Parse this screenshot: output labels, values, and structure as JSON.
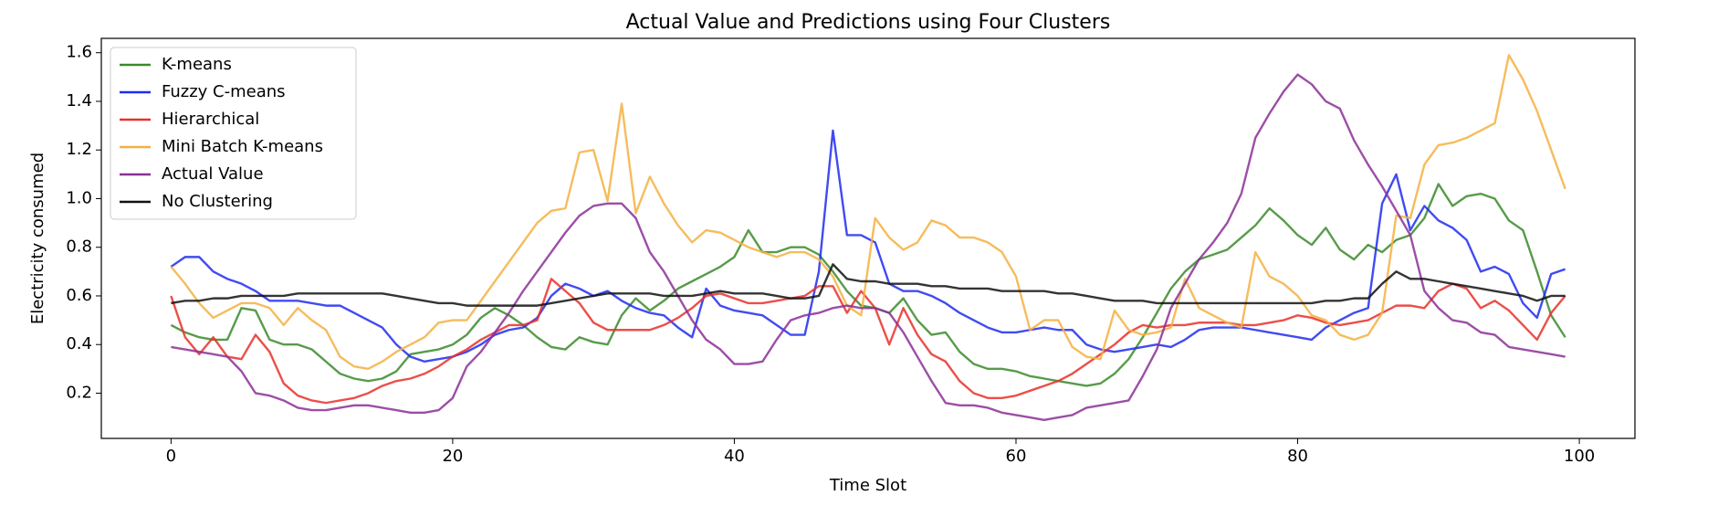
{
  "chart_data": {
    "type": "line",
    "title": "Actual Value and Predictions using Four Clusters",
    "xlabel": "Time Slot",
    "ylabel": "Electricity consumed",
    "x": [
      0,
      1,
      2,
      3,
      4,
      5,
      6,
      7,
      8,
      9,
      10,
      11,
      12,
      13,
      14,
      15,
      16,
      17,
      18,
      19,
      20,
      21,
      22,
      23,
      24,
      25,
      26,
      27,
      28,
      29,
      30,
      31,
      32,
      33,
      34,
      35,
      36,
      37,
      38,
      39,
      40,
      41,
      42,
      43,
      44,
      45,
      46,
      47,
      48,
      49,
      50,
      51,
      52,
      53,
      54,
      55,
      56,
      57,
      58,
      59,
      60,
      61,
      62,
      63,
      64,
      65,
      66,
      67,
      68,
      69,
      70,
      71,
      72,
      73,
      74,
      75,
      76,
      77,
      78,
      79,
      80,
      81,
      82,
      83,
      84,
      85,
      86,
      87,
      88,
      89,
      90,
      91,
      92,
      93,
      94,
      95,
      96,
      97,
      98,
      99
    ],
    "series": [
      {
        "name": "K-means",
        "color": "#3a8a2a",
        "values": [
          0.48,
          0.45,
          0.43,
          0.42,
          0.42,
          0.55,
          0.54,
          0.42,
          0.4,
          0.4,
          0.38,
          0.33,
          0.28,
          0.26,
          0.25,
          0.26,
          0.29,
          0.36,
          0.37,
          0.38,
          0.4,
          0.44,
          0.51,
          0.55,
          0.52,
          0.48,
          0.43,
          0.39,
          0.38,
          0.43,
          0.41,
          0.4,
          0.52,
          0.59,
          0.54,
          0.58,
          0.63,
          0.66,
          0.69,
          0.72,
          0.76,
          0.87,
          0.78,
          0.78,
          0.8,
          0.8,
          0.77,
          0.7,
          0.62,
          0.56,
          0.55,
          0.53,
          0.59,
          0.5,
          0.44,
          0.45,
          0.37,
          0.32,
          0.3,
          0.3,
          0.29,
          0.27,
          0.26,
          0.25,
          0.24,
          0.23,
          0.24,
          0.28,
          0.34,
          0.43,
          0.53,
          0.63,
          0.7,
          0.75,
          0.77,
          0.79,
          0.84,
          0.89,
          0.96,
          0.91,
          0.85,
          0.81,
          0.88,
          0.79,
          0.75,
          0.81,
          0.78,
          0.83,
          0.85,
          0.92,
          1.06,
          0.97,
          1.01,
          1.02,
          1.0,
          0.91,
          0.87,
          0.7,
          0.52,
          0.43
        ]
      },
      {
        "name": "Fuzzy C-means",
        "color": "#1f2cf0",
        "values": [
          0.72,
          0.76,
          0.76,
          0.7,
          0.67,
          0.65,
          0.62,
          0.58,
          0.58,
          0.58,
          0.57,
          0.56,
          0.56,
          0.53,
          0.5,
          0.47,
          0.4,
          0.35,
          0.33,
          0.34,
          0.35,
          0.37,
          0.4,
          0.44,
          0.46,
          0.47,
          0.51,
          0.6,
          0.65,
          0.63,
          0.6,
          0.62,
          0.58,
          0.55,
          0.53,
          0.52,
          0.47,
          0.43,
          0.63,
          0.56,
          0.54,
          0.53,
          0.52,
          0.48,
          0.44,
          0.44,
          0.7,
          1.28,
          0.85,
          0.85,
          0.82,
          0.65,
          0.62,
          0.62,
          0.6,
          0.57,
          0.53,
          0.5,
          0.47,
          0.45,
          0.45,
          0.46,
          0.47,
          0.46,
          0.46,
          0.4,
          0.38,
          0.37,
          0.38,
          0.39,
          0.4,
          0.39,
          0.42,
          0.46,
          0.47,
          0.47,
          0.47,
          0.46,
          0.45,
          0.44,
          0.43,
          0.42,
          0.47,
          0.5,
          0.53,
          0.55,
          0.98,
          1.1,
          0.87,
          0.97,
          0.91,
          0.88,
          0.83,
          0.7,
          0.72,
          0.69,
          0.57,
          0.51,
          0.69,
          0.71
        ]
      },
      {
        "name": "Hierarchical",
        "color": "#e8302a",
        "values": [
          0.6,
          0.43,
          0.36,
          0.43,
          0.35,
          0.34,
          0.44,
          0.37,
          0.24,
          0.19,
          0.17,
          0.16,
          0.17,
          0.18,
          0.2,
          0.23,
          0.25,
          0.26,
          0.28,
          0.31,
          0.35,
          0.38,
          0.42,
          0.45,
          0.48,
          0.48,
          0.5,
          0.67,
          0.62,
          0.57,
          0.49,
          0.46,
          0.46,
          0.46,
          0.46,
          0.48,
          0.51,
          0.55,
          0.6,
          0.61,
          0.59,
          0.57,
          0.57,
          0.58,
          0.59,
          0.6,
          0.64,
          0.64,
          0.53,
          0.62,
          0.55,
          0.4,
          0.55,
          0.44,
          0.36,
          0.33,
          0.25,
          0.2,
          0.18,
          0.18,
          0.19,
          0.21,
          0.23,
          0.25,
          0.28,
          0.32,
          0.36,
          0.4,
          0.45,
          0.48,
          0.47,
          0.48,
          0.48,
          0.49,
          0.49,
          0.49,
          0.48,
          0.48,
          0.49,
          0.5,
          0.52,
          0.51,
          0.49,
          0.48,
          0.49,
          0.5,
          0.53,
          0.56,
          0.56,
          0.55,
          0.62,
          0.65,
          0.63,
          0.55,
          0.58,
          0.54,
          0.48,
          0.42,
          0.53,
          0.6
        ]
      },
      {
        "name": "Mini Batch K-means",
        "color": "#f5b041",
        "values": [
          0.72,
          0.65,
          0.57,
          0.51,
          0.54,
          0.57,
          0.57,
          0.55,
          0.48,
          0.55,
          0.5,
          0.46,
          0.35,
          0.31,
          0.3,
          0.33,
          0.37,
          0.4,
          0.43,
          0.49,
          0.5,
          0.5,
          0.58,
          0.66,
          0.74,
          0.82,
          0.9,
          0.95,
          0.96,
          1.19,
          1.2,
          0.99,
          1.39,
          0.94,
          1.09,
          0.98,
          0.89,
          0.82,
          0.87,
          0.86,
          0.83,
          0.8,
          0.78,
          0.76,
          0.78,
          0.78,
          0.75,
          0.68,
          0.56,
          0.52,
          0.92,
          0.84,
          0.79,
          0.82,
          0.91,
          0.89,
          0.84,
          0.84,
          0.82,
          0.78,
          0.68,
          0.46,
          0.5,
          0.5,
          0.39,
          0.35,
          0.34,
          0.54,
          0.46,
          0.44,
          0.45,
          0.47,
          0.67,
          0.55,
          0.52,
          0.49,
          0.47,
          0.78,
          0.68,
          0.65,
          0.6,
          0.52,
          0.5,
          0.44,
          0.42,
          0.44,
          0.53,
          0.93,
          0.92,
          1.14,
          1.22,
          1.23,
          1.25,
          1.28,
          1.31,
          1.59,
          1.49,
          1.36,
          1.2,
          1.04
        ]
      },
      {
        "name": "Actual Value",
        "color": "#8b2f97",
        "values": [
          0.39,
          0.38,
          0.37,
          0.36,
          0.35,
          0.29,
          0.2,
          0.19,
          0.17,
          0.14,
          0.13,
          0.13,
          0.14,
          0.15,
          0.15,
          0.14,
          0.13,
          0.12,
          0.12,
          0.13,
          0.18,
          0.31,
          0.37,
          0.45,
          0.53,
          0.62,
          0.7,
          0.78,
          0.86,
          0.93,
          0.97,
          0.98,
          0.98,
          0.92,
          0.78,
          0.7,
          0.6,
          0.5,
          0.42,
          0.38,
          0.32,
          0.32,
          0.33,
          0.42,
          0.5,
          0.52,
          0.53,
          0.55,
          0.56,
          0.55,
          0.55,
          0.53,
          0.45,
          0.35,
          0.25,
          0.16,
          0.15,
          0.15,
          0.14,
          0.12,
          0.11,
          0.1,
          0.09,
          0.1,
          0.11,
          0.14,
          0.15,
          0.16,
          0.17,
          0.27,
          0.38,
          0.55,
          0.65,
          0.75,
          0.82,
          0.9,
          1.02,
          1.25,
          1.35,
          1.44,
          1.51,
          1.47,
          1.4,
          1.37,
          1.24,
          1.14,
          1.05,
          0.95,
          0.85,
          0.62,
          0.55,
          0.5,
          0.49,
          0.45,
          0.44,
          0.39,
          0.38,
          0.37,
          0.36,
          0.35
        ]
      },
      {
        "name": "No Clustering",
        "color": "#111111",
        "values": [
          0.57,
          0.58,
          0.58,
          0.59,
          0.59,
          0.6,
          0.6,
          0.6,
          0.6,
          0.61,
          0.61,
          0.61,
          0.61,
          0.61,
          0.61,
          0.61,
          0.6,
          0.59,
          0.58,
          0.57,
          0.57,
          0.56,
          0.56,
          0.56,
          0.56,
          0.56,
          0.56,
          0.57,
          0.58,
          0.59,
          0.6,
          0.61,
          0.61,
          0.61,
          0.61,
          0.6,
          0.6,
          0.6,
          0.61,
          0.62,
          0.61,
          0.61,
          0.61,
          0.6,
          0.59,
          0.59,
          0.6,
          0.73,
          0.67,
          0.66,
          0.66,
          0.65,
          0.65,
          0.65,
          0.64,
          0.64,
          0.63,
          0.63,
          0.63,
          0.62,
          0.62,
          0.62,
          0.62,
          0.61,
          0.61,
          0.6,
          0.59,
          0.58,
          0.58,
          0.58,
          0.57,
          0.57,
          0.57,
          0.57,
          0.57,
          0.57,
          0.57,
          0.57,
          0.57,
          0.57,
          0.57,
          0.57,
          0.58,
          0.58,
          0.59,
          0.59,
          0.65,
          0.7,
          0.67,
          0.67,
          0.66,
          0.65,
          0.64,
          0.63,
          0.62,
          0.61,
          0.6,
          0.58,
          0.6,
          0.6
        ]
      }
    ],
    "xlim": [
      -4.95,
      103.95
    ],
    "xticks": [
      0,
      20,
      40,
      60,
      80,
      100
    ],
    "ylim": [
      0.014,
      1.659
    ],
    "yticks": [
      0.2,
      0.4,
      0.6,
      0.8,
      {
        "value": 1,
        "label": "1.0"
      },
      1.2,
      1.4,
      1.6
    ],
    "grid": false,
    "legend": "upper left"
  }
}
